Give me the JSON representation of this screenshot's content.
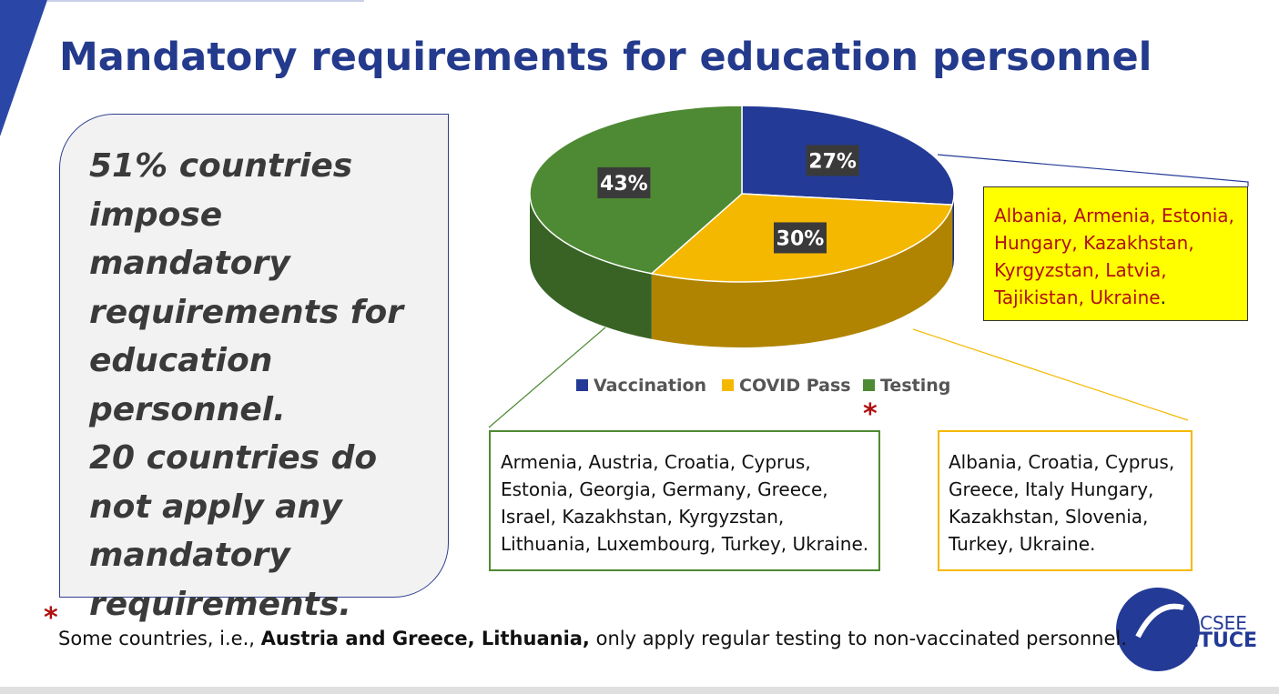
{
  "title": "Mandatory requirements for education personnel",
  "summary": {
    "paragraphs": [
      "51% countries impose mandatory requirements for education personnel.",
      "20 countries do not apply any mandatory requirements."
    ]
  },
  "chart_data": {
    "type": "pie",
    "categories": [
      "Vaccination",
      "COVID Pass",
      "Testing"
    ],
    "values": [
      27,
      30,
      43
    ],
    "value_labels": [
      "27%",
      "30%",
      "43%"
    ],
    "colors": [
      "#233a96",
      "#f5b800",
      "#4e8a33"
    ],
    "legend": "bottom"
  },
  "callouts": {
    "vaccination": {
      "parts": [
        "Albania, Armenia, Estonia, Hungary, Kazakhstan, Kyrgyzstan, Latvia, Tajikistan, Ukraine",
        "."
      ]
    },
    "testing": {
      "text": "Armenia, Austria, Croatia, Cyprus, Estonia, Georgia, Germany,  Greece, Israel, Kazakhstan, Kyrgyzstan, Lithuania, Luxembourg, Turkey, Ukraine.",
      "marker": "*"
    },
    "covid_pass": {
      "text": "Albania, Croatia, Cyprus, Greece, Italy Hungary, Kazakhstan, Slovenia, Turkey, Ukraine."
    }
  },
  "footnote": {
    "marker": "*",
    "parts": [
      "Some countries, i.e., ",
      "Austria and Greece, Lithuania,",
      " only apply regular testing to non-vaccinated personnel."
    ]
  },
  "logo": {
    "top": "CSEE",
    "bottom": "ETUCE"
  }
}
